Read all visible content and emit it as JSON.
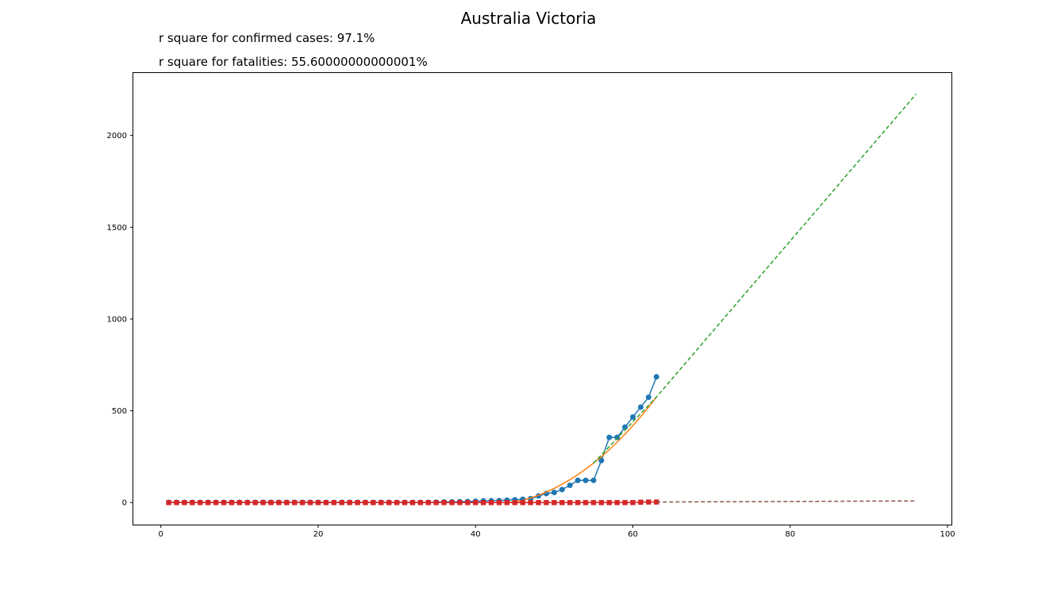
{
  "chart_data": {
    "type": "line",
    "title": "Australia Victoria",
    "annotations": [
      "r square for confirmed cases: 97.1%",
      "r square for fatalities: 55.60000000000001%"
    ],
    "xlabel": "",
    "ylabel": "",
    "xlim": [
      -3.5,
      100.5
    ],
    "ylim": [
      -120,
      2340
    ],
    "xticks": [
      0,
      20,
      40,
      60,
      80,
      100
    ],
    "yticks": [
      0,
      500,
      1000,
      1500,
      2000
    ],
    "grid": false,
    "series": [
      {
        "kind": "confirmed",
        "color": "#1f77b4",
        "marker": "circle",
        "x": [
          1,
          2,
          3,
          4,
          5,
          6,
          7,
          8,
          9,
          10,
          11,
          12,
          13,
          14,
          15,
          16,
          17,
          18,
          19,
          20,
          21,
          22,
          23,
          24,
          25,
          26,
          27,
          28,
          29,
          30,
          31,
          32,
          33,
          34,
          35,
          36,
          37,
          38,
          39,
          40,
          41,
          42,
          43,
          44,
          45,
          46,
          47,
          48,
          49,
          50,
          51,
          52,
          53,
          54,
          55,
          56,
          57,
          58,
          59,
          60,
          61,
          62,
          63
        ],
        "values": [
          1,
          1,
          1,
          1,
          1,
          1,
          1,
          1,
          1,
          1,
          1,
          1,
          1,
          1,
          1,
          1,
          1,
          1,
          1,
          1,
          1,
          1,
          1,
          1,
          1,
          1,
          1,
          1,
          1,
          1,
          1,
          1,
          1,
          1,
          2,
          3,
          4,
          5,
          6,
          7,
          9,
          10,
          11,
          13,
          15,
          18,
          21,
          36,
          49,
          55,
          71,
          94,
          121,
          121,
          121,
          229,
          355,
          355,
          411,
          466,
          520,
          574,
          685
        ]
      },
      {
        "kind": "confirmed fit",
        "color": "#ff7f0e",
        "marker": "none",
        "x": [
          44,
          45,
          46,
          47,
          48,
          49,
          50,
          51,
          52,
          53,
          54,
          55,
          56,
          57,
          58,
          59,
          60,
          61,
          62,
          63
        ],
        "values": [
          0,
          4,
          12,
          25,
          40,
          57,
          77,
          100,
          125,
          152,
          182,
          215,
          250,
          288,
          329,
          373,
          419,
          468,
          520,
          575
        ]
      },
      {
        "kind": "confirmed projection",
        "color": "#2ca02c",
        "marker": "none",
        "dashed": true,
        "x": [
          55,
          63,
          96
        ],
        "values": [
          215,
          575,
          2225
        ]
      },
      {
        "kind": "fatalities",
        "color": "#d62728",
        "marker": "square",
        "x": [
          1,
          2,
          3,
          4,
          5,
          6,
          7,
          8,
          9,
          10,
          11,
          12,
          13,
          14,
          15,
          16,
          17,
          18,
          19,
          20,
          21,
          22,
          23,
          24,
          25,
          26,
          27,
          28,
          29,
          30,
          31,
          32,
          33,
          34,
          35,
          36,
          37,
          38,
          39,
          40,
          41,
          42,
          43,
          44,
          45,
          46,
          47,
          48,
          49,
          50,
          51,
          52,
          53,
          54,
          55,
          56,
          57,
          58,
          59,
          60,
          61,
          62,
          63
        ],
        "values": [
          0,
          0,
          0,
          0,
          0,
          0,
          0,
          0,
          0,
          0,
          0,
          0,
          0,
          0,
          0,
          0,
          0,
          0,
          0,
          0,
          0,
          0,
          0,
          0,
          0,
          0,
          0,
          0,
          0,
          0,
          0,
          0,
          0,
          0,
          0,
          0,
          0,
          0,
          0,
          0,
          0,
          0,
          0,
          0,
          0,
          0,
          0,
          0,
          0,
          0,
          0,
          0,
          0,
          0,
          0,
          0,
          0,
          0,
          0,
          0,
          2,
          3,
          3
        ]
      },
      {
        "kind": "fatalities projection",
        "color": "#8c564b",
        "marker": "none",
        "dashed": true,
        "x": [
          63,
          96
        ],
        "values": [
          3,
          9
        ]
      }
    ]
  }
}
